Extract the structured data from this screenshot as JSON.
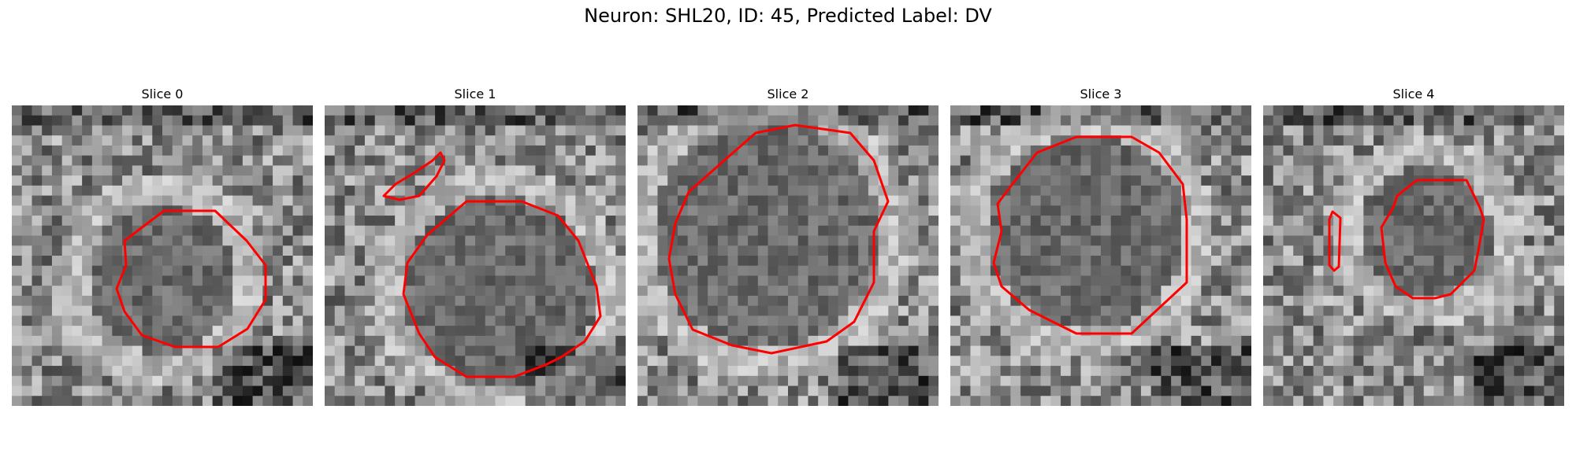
{
  "figure": {
    "title": "Neuron: SHL20, ID: 45, Predicted Label: DV"
  },
  "panels": [
    {
      "title": "Slice 0"
    },
    {
      "title": "Slice 1"
    },
    {
      "title": "Slice 2"
    },
    {
      "title": "Slice 3"
    },
    {
      "title": "Slice 4"
    }
  ],
  "colors": {
    "contour": "#ff0000",
    "background": "#ffffff"
  },
  "image_style": "grayscale noisy microscopy crop with red segmentation contour"
}
